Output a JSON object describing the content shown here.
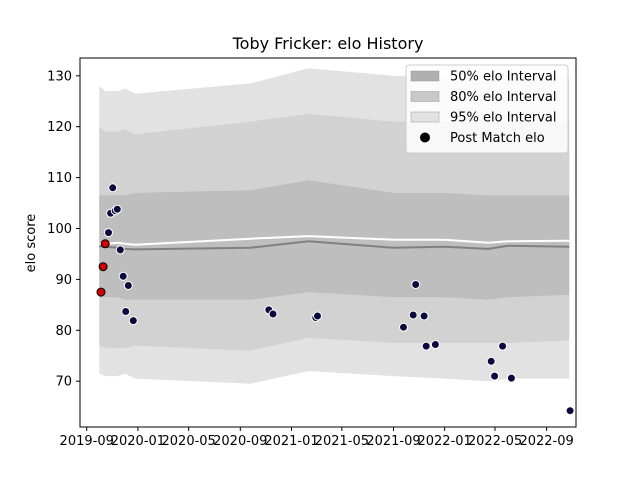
{
  "chart_data": {
    "type": "line",
    "title": "Toby Fricker: elo History",
    "xlabel": "",
    "ylabel": "elo score",
    "xlim": [
      "2019-08-16",
      "2022-11-10"
    ],
    "ylim": [
      61.0,
      133.5
    ],
    "yticks": [
      70,
      80,
      90,
      100,
      110,
      120,
      130
    ],
    "xticks": [
      "2019-09-01",
      "2020-01-01",
      "2020-05-01",
      "2020-09-01",
      "2021-01-01",
      "2021-05-01",
      "2021-09-01",
      "2022-01-01",
      "2022-05-01",
      "2022-09-01"
    ],
    "xtick_labels": [
      "2019-09",
      "2020-01",
      "2020-05",
      "2020-09",
      "2021-01",
      "2021-05",
      "2021-09",
      "2022-01",
      "2022-05",
      "2022-09"
    ],
    "grid": false,
    "legend_position": "upper right",
    "legend": [
      {
        "label": "50% elo Interval",
        "kind": "band",
        "color": "#b0b0b0"
      },
      {
        "label": "80% elo Interval",
        "kind": "band",
        "color": "#c8c8c8"
      },
      {
        "label": "95% elo Interval",
        "kind": "band",
        "color": "#e2e2e2"
      },
      {
        "label": "Post Match elo",
        "kind": "marker",
        "color": "#000000"
      }
    ],
    "band_dates": [
      "2019-10-01",
      "2019-10-15",
      "2019-11-15",
      "2019-12-01",
      "2019-12-25",
      "2020-09-25",
      "2021-02-10",
      "2021-09-01",
      "2022-01-01",
      "2022-04-15",
      "2022-06-01",
      "2022-10-25"
    ],
    "bands": [
      {
        "name": "95% elo Interval",
        "color": "#e2e2e2",
        "upper": [
          128.0,
          127.0,
          127.0,
          127.5,
          126.5,
          128.5,
          131.5,
          130.0,
          129.5,
          129.0,
          129.5,
          129.5
        ],
        "lower": [
          71.5,
          71.0,
          71.0,
          71.5,
          70.5,
          69.5,
          72.0,
          71.0,
          70.5,
          70.0,
          70.5,
          70.5
        ]
      },
      {
        "name": "80% elo Interval",
        "color": "#d2d2d2",
        "upper": [
          120.0,
          119.0,
          119.0,
          119.5,
          118.5,
          121.0,
          122.5,
          121.0,
          121.0,
          121.0,
          121.0,
          121.0
        ],
        "lower": [
          77.0,
          76.5,
          76.5,
          76.5,
          77.0,
          76.0,
          78.5,
          77.5,
          77.5,
          77.5,
          77.5,
          78.0
        ]
      },
      {
        "name": "50% elo Interval",
        "color": "#bebebe",
        "upper": [
          106.5,
          106.5,
          106.5,
          106.5,
          107.0,
          107.5,
          109.5,
          107.0,
          107.0,
          106.5,
          106.5,
          106.5
        ],
        "lower": [
          86.5,
          86.5,
          86.5,
          86.0,
          86.0,
          86.0,
          87.5,
          86.5,
          86.5,
          86.0,
          86.5,
          87.0
        ]
      }
    ],
    "series": [
      {
        "name": "",
        "color": "#ffffff",
        "y": [
          97.0,
          97.0,
          97.2,
          97.0,
          96.8,
          98.0,
          98.5,
          97.8,
          97.8,
          97.2,
          97.5,
          97.6
        ]
      },
      {
        "name": "",
        "color": "#808080",
        "y": [
          96.5,
          96.4,
          96.2,
          96.0,
          95.9,
          96.2,
          97.5,
          96.2,
          96.4,
          96.0,
          96.6,
          96.4
        ]
      }
    ],
    "points": [
      {
        "x": "2019-10-05",
        "y": 87.5,
        "color": "#cc0000"
      },
      {
        "x": "2019-10-10",
        "y": 92.5,
        "color": "#cc0000"
      },
      {
        "x": "2019-10-15",
        "y": 97.0,
        "color": "#cc0000"
      },
      {
        "x": "2019-10-23",
        "y": 99.2,
        "color": "#0a0a3c"
      },
      {
        "x": "2019-10-28",
        "y": 103.0,
        "color": "#0a0a3c"
      },
      {
        "x": "2019-11-02",
        "y": 108.0,
        "color": "#0a0a3c"
      },
      {
        "x": "2019-11-08",
        "y": 103.5,
        "color": "#0a0a3c"
      },
      {
        "x": "2019-11-13",
        "y": 103.8,
        "color": "#0a0a3c"
      },
      {
        "x": "2019-11-20",
        "y": 95.8,
        "color": "#0a0a3c"
      },
      {
        "x": "2019-11-27",
        "y": 90.6,
        "color": "#0a0a3c"
      },
      {
        "x": "2019-12-03",
        "y": 83.7,
        "color": "#0a0a3c"
      },
      {
        "x": "2019-12-09",
        "y": 88.8,
        "color": "#0a0a3c"
      },
      {
        "x": "2019-12-21",
        "y": 81.9,
        "color": "#0a0a3c"
      },
      {
        "x": "2020-11-08",
        "y": 84.0,
        "color": "#0a0a3c"
      },
      {
        "x": "2020-11-18",
        "y": 83.2,
        "color": "#0a0a3c"
      },
      {
        "x": "2021-02-28",
        "y": 82.5,
        "color": "#0a0a3c"
      },
      {
        "x": "2021-03-04",
        "y": 82.8,
        "color": "#0a0a3c"
      },
      {
        "x": "2021-09-25",
        "y": 80.6,
        "color": "#0a0a3c"
      },
      {
        "x": "2021-10-18",
        "y": 83.0,
        "color": "#0a0a3c"
      },
      {
        "x": "2021-10-24",
        "y": 89.0,
        "color": "#0a0a3c"
      },
      {
        "x": "2021-11-13",
        "y": 82.8,
        "color": "#0a0a3c"
      },
      {
        "x": "2021-11-18",
        "y": 76.9,
        "color": "#0a0a3c"
      },
      {
        "x": "2021-12-10",
        "y": 77.2,
        "color": "#0a0a3c"
      },
      {
        "x": "2022-04-22",
        "y": 73.9,
        "color": "#0a0a3c"
      },
      {
        "x": "2022-04-30",
        "y": 71.0,
        "color": "#0a0a3c"
      },
      {
        "x": "2022-05-19",
        "y": 76.9,
        "color": "#0a0a3c"
      },
      {
        "x": "2022-06-09",
        "y": 70.6,
        "color": "#0a0a3c"
      },
      {
        "x": "2022-10-27",
        "y": 64.2,
        "color": "#0a0a3c"
      }
    ]
  }
}
